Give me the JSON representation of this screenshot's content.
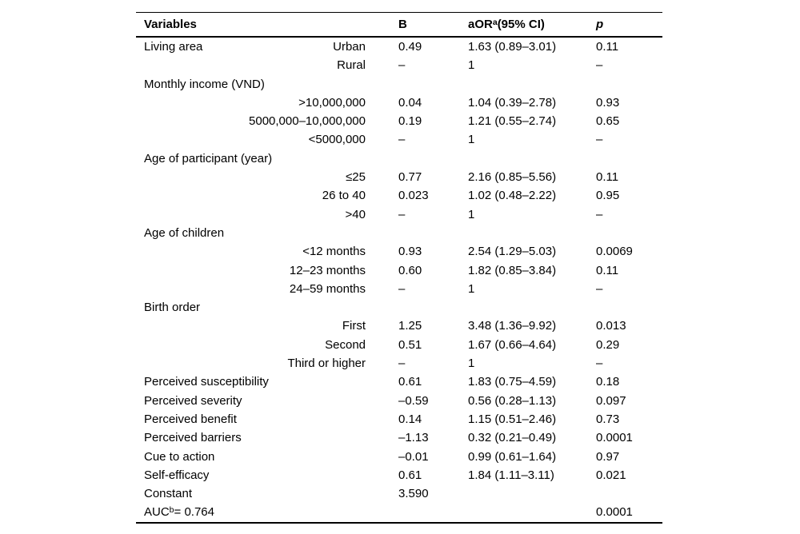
{
  "table": {
    "header": {
      "variables": "Variables",
      "b": "B",
      "aor_prefix": "aOR",
      "aor_sup": "a",
      "aor_suffix": "(95% CI)",
      "p": "p"
    },
    "rows": [
      {
        "label": "Living area",
        "category": "Urban",
        "b": "0.49",
        "aor": "1.63 (0.89–3.01)",
        "p": "0.11"
      },
      {
        "category": "Rural",
        "b": "–",
        "aor": "1",
        "p": "–"
      },
      {
        "label": "Monthly income (VND)"
      },
      {
        "category": ">10,000,000",
        "b": "0.04",
        "aor": "1.04 (0.39–2.78)",
        "p": "0.93"
      },
      {
        "category": "5000,000–10,000,000",
        "b": "0.19",
        "aor": "1.21 (0.55–2.74)",
        "p": "0.65"
      },
      {
        "category": "<5000,000",
        "b": "–",
        "aor": "1",
        "p": "–"
      },
      {
        "label": "Age of participant (year)"
      },
      {
        "category": "≤25",
        "b": "0.77",
        "aor": "2.16 (0.85–5.56)",
        "p": "0.11"
      },
      {
        "category": "26 to 40",
        "b": "0.023",
        "aor": "1.02 (0.48–2.22)",
        "p": "0.95"
      },
      {
        "category": ">40",
        "b": "–",
        "aor": "1",
        "p": "–"
      },
      {
        "label": "Age of children"
      },
      {
        "category": "<12 months",
        "b": "0.93",
        "aor": "2.54 (1.29–5.03)",
        "p": "0.0069"
      },
      {
        "category": "12–23 months",
        "b": "0.60",
        "aor": "1.82 (0.85–3.84)",
        "p": "0.11"
      },
      {
        "category": "24–59 months",
        "b": "–",
        "aor": "1",
        "p": "–"
      },
      {
        "label": "Birth order"
      },
      {
        "category": "First",
        "b": "1.25",
        "aor": "3.48 (1.36–9.92)",
        "p": "0.013"
      },
      {
        "category": "Second",
        "b": "0.51",
        "aor": "1.67 (0.66–4.64)",
        "p": "0.29"
      },
      {
        "category": "Third or higher",
        "b": "–",
        "aor": "1",
        "p": "–"
      },
      {
        "label": "Perceived susceptibility",
        "b": "0.61",
        "aor": "1.83 (0.75–4.59)",
        "p": "0.18"
      },
      {
        "label": "Perceived severity",
        "b": "–0.59",
        "aor": "0.56 (0.28–1.13)",
        "p": "0.097"
      },
      {
        "label": "Perceived benefit",
        "b": "0.14",
        "aor": "1.15 (0.51–2.46)",
        "p": "0.73"
      },
      {
        "label": "Perceived barriers",
        "b": "–1.13",
        "aor": "0.32 (0.21–0.49)",
        "p": "0.0001"
      },
      {
        "label": "Cue to action",
        "b": "–0.01",
        "aor": "0.99 (0.61–1.64)",
        "p": "0.97"
      },
      {
        "label": "Self-efficacy",
        "b": "0.61",
        "aor": "1.84 (1.11–3.11)",
        "p": "0.021"
      },
      {
        "label": "Constant",
        "b": "3.590"
      },
      {
        "label": "AUC",
        "label_sup": "b",
        "label_after": " = 0.764",
        "p": "0.0001"
      }
    ]
  }
}
